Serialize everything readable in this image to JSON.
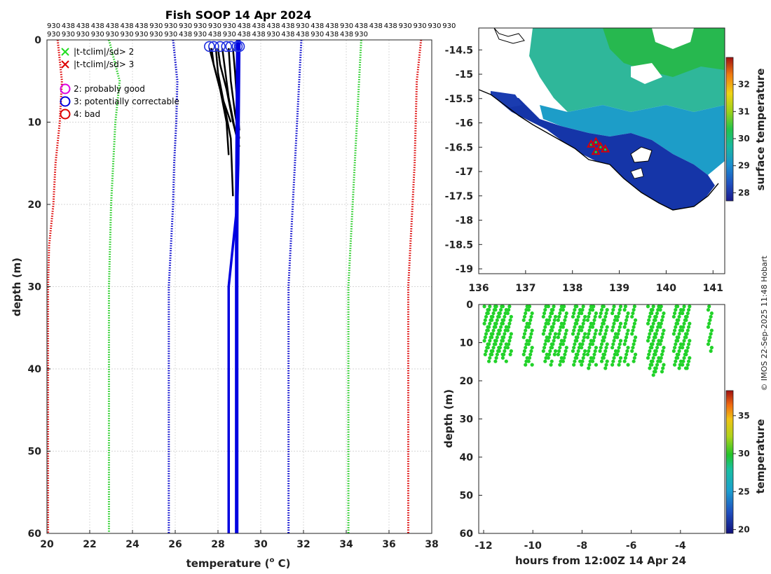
{
  "chart_data": [
    {
      "id": "profile",
      "type": "line",
      "title": "Fish SOOP 14 Apr 2024",
      "xlabel": "temperature (o C)",
      "xlabel_main": "temperature (",
      "xlabel_sup": "o",
      "xlabel_tail": " C)",
      "ylabel": "depth (m)",
      "xlim": [
        20,
        38
      ],
      "ylim": [
        0,
        60
      ],
      "xticks": [
        20,
        22,
        24,
        26,
        28,
        30,
        32,
        34,
        36,
        38
      ],
      "yticks": [
        0,
        10,
        20,
        30,
        40,
        50,
        60
      ],
      "top_labels_row1": [
        "930",
        "438",
        "438",
        "438",
        "438",
        "438",
        "438",
        "930",
        "930",
        "930",
        "930",
        "930",
        "930",
        "438",
        "438",
        "438",
        "438",
        "930",
        "438",
        "438",
        "930",
        "438",
        "438",
        "438",
        "930",
        "930",
        "930",
        "930"
      ],
      "top_labels_row2": [
        "930",
        "930",
        "930",
        "930",
        "930",
        "930",
        "930",
        "930",
        "930",
        "438",
        "930",
        "438",
        "930",
        "438",
        "438",
        "930",
        "438",
        "438",
        "930",
        "438",
        "438",
        "930"
      ],
      "legend": [
        {
          "symbol": "x",
          "color": "#22dd22",
          "label": "|t-tclim|/sd> 2"
        },
        {
          "symbol": "x",
          "color": "#dd0000",
          "label": "|t-tclim|/sd> 3"
        },
        {
          "symbol": "o",
          "color": "#dd00dd",
          "label": "2: probably good"
        },
        {
          "symbol": "o",
          "color": "#0000dd",
          "label": "3: potentially correctable"
        },
        {
          "symbol": "o",
          "color": "#dd0000",
          "label": "4: bad"
        }
      ],
      "climatology_lines": [
        {
          "name": "red-left",
          "color": "#dd0000",
          "depth": [
            0,
            5,
            10,
            15,
            20,
            25,
            30,
            40,
            50,
            60
          ],
          "temp": [
            20.5,
            20.7,
            20.6,
            20.4,
            20.3,
            20.1,
            20.05,
            20.05,
            20.05,
            20.05
          ]
        },
        {
          "name": "green-left",
          "color": "#22cc22",
          "depth": [
            0,
            5,
            10,
            15,
            20,
            25,
            30,
            40,
            50,
            60
          ],
          "temp": [
            22.9,
            23.4,
            23.2,
            23.1,
            23.0,
            22.95,
            22.9,
            22.9,
            22.9,
            22.9
          ]
        },
        {
          "name": "blue-left",
          "color": "#0000cc",
          "depth": [
            0,
            5,
            10,
            15,
            20,
            25,
            30,
            40,
            50,
            60
          ],
          "temp": [
            25.9,
            26.1,
            26.05,
            25.95,
            25.9,
            25.8,
            25.7,
            25.7,
            25.7,
            25.7
          ]
        },
        {
          "name": "blue-right",
          "color": "#0000cc",
          "depth": [
            0,
            5,
            10,
            15,
            20,
            25,
            30,
            40,
            50,
            60
          ],
          "temp": [
            31.9,
            31.8,
            31.7,
            31.6,
            31.5,
            31.4,
            31.3,
            31.3,
            31.3,
            31.3
          ]
        },
        {
          "name": "green-right",
          "color": "#22cc22",
          "depth": [
            0,
            5,
            10,
            15,
            20,
            25,
            30,
            40,
            50,
            60
          ],
          "temp": [
            34.7,
            34.6,
            34.5,
            34.4,
            34.3,
            34.2,
            34.1,
            34.1,
            34.1,
            34.1
          ]
        },
        {
          "name": "red-right",
          "color": "#dd0000",
          "depth": [
            0,
            5,
            10,
            15,
            20,
            25,
            30,
            40,
            50,
            60
          ],
          "temp": [
            37.5,
            37.3,
            37.25,
            37.2,
            37.1,
            37.0,
            36.9,
            36.9,
            36.9,
            36.9
          ]
        }
      ],
      "blue_profiles": [
        {
          "depth": [
            0,
            15,
            20,
            30,
            60
          ],
          "temp": [
            29.0,
            28.95,
            28.9,
            28.5,
            28.5
          ]
        },
        {
          "depth": [
            0,
            20,
            60
          ],
          "temp": [
            28.9,
            28.85,
            28.85
          ]
        },
        {
          "depth": [
            0,
            25,
            60
          ],
          "temp": [
            28.95,
            28.9,
            28.9
          ]
        }
      ],
      "black_profiles": [
        {
          "depth": [
            1,
            3,
            6,
            10,
            14
          ],
          "temp": [
            27.7,
            27.8,
            28.1,
            28.4,
            28.5
          ]
        },
        {
          "depth": [
            1,
            4,
            8,
            12,
            19
          ],
          "temp": [
            27.9,
            28.0,
            28.3,
            28.6,
            28.7
          ]
        },
        {
          "depth": [
            1,
            3,
            7,
            11,
            13
          ],
          "temp": [
            28.2,
            28.3,
            28.5,
            28.8,
            29.0
          ]
        },
        {
          "depth": [
            1,
            5,
            9,
            12
          ],
          "temp": [
            28.5,
            28.6,
            28.8,
            29.0
          ]
        },
        {
          "depth": [
            1,
            4,
            8,
            11
          ],
          "temp": [
            28.7,
            28.8,
            28.9,
            29.0
          ]
        },
        {
          "depth": [
            1,
            3,
            6,
            10,
            12
          ],
          "temp": [
            28.0,
            28.1,
            28.4,
            28.7,
            28.9
          ]
        },
        {
          "depth": [
            1,
            4,
            7,
            10
          ],
          "temp": [
            27.6,
            27.9,
            28.2,
            28.6
          ]
        }
      ],
      "surface_flags": [
        {
          "temp": 27.6,
          "depth": 0.8
        },
        {
          "temp": 27.8,
          "depth": 0.8
        },
        {
          "temp": 28.1,
          "depth": 0.8
        },
        {
          "temp": 28.4,
          "depth": 0.8
        },
        {
          "temp": 28.6,
          "depth": 0.8
        },
        {
          "temp": 28.9,
          "depth": 0.8
        },
        {
          "temp": 29.0,
          "depth": 0.8
        }
      ]
    },
    {
      "id": "map",
      "type": "heatmap",
      "xlim": [
        136,
        141.25
      ],
      "ylim": [
        -19.1,
        -14.05
      ],
      "xticks": [
        136,
        137,
        138,
        139,
        140,
        141
      ],
      "yticks": [
        -14.5,
        -15,
        -15.5,
        -16,
        -16.5,
        -17,
        -17.5,
        -18,
        -18.5,
        -19
      ],
      "colorbar_label": "surface temperature",
      "colorbar_range": [
        27.7,
        33.0
      ],
      "colorbar_ticks": [
        28,
        29,
        30,
        31,
        32
      ],
      "track": {
        "lon": [
          138.4,
          138.5,
          138.6,
          138.7,
          138.5
        ],
        "lat": [
          -16.45,
          -16.6,
          -16.5,
          -16.55,
          -16.4
        ]
      }
    },
    {
      "id": "timeseries",
      "type": "scatter",
      "xlabel": "hours from 12:00Z 14 Apr 24",
      "ylabel": "depth (m)",
      "xlim": [
        -12.2,
        -2.2
      ],
      "ylim": [
        0,
        60
      ],
      "xticks": [
        -12,
        -10,
        -8,
        -6,
        -4
      ],
      "yticks": [
        0,
        10,
        20,
        30,
        40,
        50,
        60
      ],
      "colorbar_label": "temperature",
      "colorbar_range": [
        19.5,
        38.3
      ],
      "colorbar_ticks": [
        20,
        25,
        30,
        35
      ],
      "casts": [
        {
          "t": -11.9,
          "maxdepth": 14
        },
        {
          "t": -11.75,
          "maxdepth": 15
        },
        {
          "t": -11.6,
          "maxdepth": 14
        },
        {
          "t": -11.45,
          "maxdepth": 15
        },
        {
          "t": -11.3,
          "maxdepth": 14
        },
        {
          "t": -11.15,
          "maxdepth": 15
        },
        {
          "t": -10.95,
          "maxdepth": 14
        },
        {
          "t": -10.3,
          "maxdepth": 16
        },
        {
          "t": -10.1,
          "maxdepth": 16
        },
        {
          "t": -9.5,
          "maxdepth": 15
        },
        {
          "t": -9.3,
          "maxdepth": 16
        },
        {
          "t": -9.15,
          "maxdepth": 14
        },
        {
          "t": -8.9,
          "maxdepth": 16
        },
        {
          "t": -8.7,
          "maxdepth": 15
        },
        {
          "t": -8.3,
          "maxdepth": 16
        },
        {
          "t": -8.15,
          "maxdepth": 15
        },
        {
          "t": -7.95,
          "maxdepth": 16
        },
        {
          "t": -7.7,
          "maxdepth": 17
        },
        {
          "t": -7.5,
          "maxdepth": 16
        },
        {
          "t": -7.2,
          "maxdepth": 15
        },
        {
          "t": -7.05,
          "maxdepth": 17
        },
        {
          "t": -6.7,
          "maxdepth": 16
        },
        {
          "t": -6.5,
          "maxdepth": 16
        },
        {
          "t": -6.2,
          "maxdepth": 16
        },
        {
          "t": -5.9,
          "maxdepth": 15
        },
        {
          "t": -5.25,
          "maxdepth": 17
        },
        {
          "t": -5.1,
          "maxdepth": 19
        },
        {
          "t": -4.95,
          "maxdepth": 18
        },
        {
          "t": -4.75,
          "maxdepth": 18
        },
        {
          "t": -4.2,
          "maxdepth": 16
        },
        {
          "t": -4.05,
          "maxdepth": 17
        },
        {
          "t": -3.85,
          "maxdepth": 17
        },
        {
          "t": -3.7,
          "maxdepth": 17
        },
        {
          "t": -2.8,
          "maxdepth": 13
        }
      ],
      "point_temp": 30
    }
  ],
  "credit": "© IMOS 22-Sep-2025 11:48 Hobart"
}
